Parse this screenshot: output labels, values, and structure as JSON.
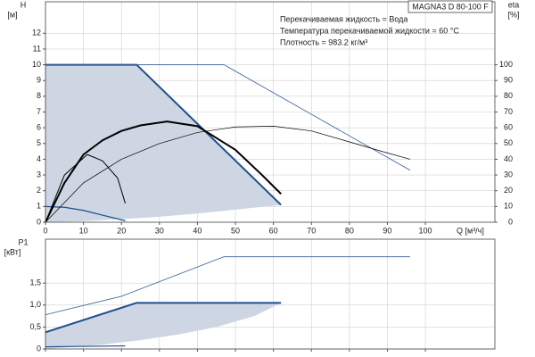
{
  "chart_data": [
    {
      "type": "line",
      "title": "MAGNA3 D 80-100 F",
      "annotations": [
        "Перекачиваемая жидкость = Вода",
        "Температура перекачиваемой жидкости = 60 °C",
        "Плотность = 983.2 кг/м³"
      ],
      "ylabel": [
        "H",
        "[м]"
      ],
      "y2label": [
        "eta",
        "[%]"
      ],
      "xlabel": "Q [м³/ч]",
      "xlim": [
        0,
        118.3
      ],
      "xticks": [
        0,
        10,
        20,
        30,
        40,
        50,
        60,
        70,
        80,
        90,
        100
      ],
      "ylim": [
        0,
        14
      ],
      "yticks": [
        0,
        1,
        2,
        3,
        4,
        5,
        6,
        7,
        8,
        9,
        10,
        11,
        12
      ],
      "y2lim": [
        0,
        140
      ],
      "y2ticks": [
        0,
        10,
        20,
        30,
        40,
        50,
        60,
        70,
        80,
        90,
        100
      ],
      "grid": true,
      "series": [
        {
          "fill": "#cdd6e2",
          "x": [
            0,
            24,
            62,
            50,
            40,
            30,
            20,
            10,
            0
          ],
          "values": [
            10,
            10,
            1.1,
            0.8,
            0.55,
            0.35,
            0.2,
            0.07,
            0
          ]
        },
        {
          "color": "#1f4e8c",
          "width": 2,
          "x": [
            0,
            24,
            62
          ],
          "values": [
            10,
            10,
            1.1
          ]
        },
        {
          "color": "#1f4e8c",
          "width": 1.2,
          "x": [
            0,
            5,
            10,
            15,
            21
          ],
          "values": [
            1,
            0.95,
            0.75,
            0.45,
            0.1
          ]
        },
        {
          "color": "#3a5f9a",
          "width": 0.8,
          "x": [
            0,
            47,
            96
          ],
          "values": [
            10,
            10,
            3.3
          ]
        },
        {
          "color": "#000000",
          "width": 2,
          "x": [
            0,
            5,
            10,
            15,
            20,
            25,
            32,
            40,
            50,
            57,
            62
          ],
          "values": [
            0,
            2.5,
            4.3,
            5.2,
            5.8,
            6.15,
            6.4,
            6.1,
            4.6,
            3,
            1.8
          ]
        },
        {
          "color": "#000000",
          "width": 1,
          "x": [
            0,
            5,
            11,
            15,
            19,
            21
          ],
          "values": [
            0,
            3,
            4.3,
            3.9,
            2.8,
            1.2
          ]
        },
        {
          "color": "#000000",
          "width": 0.7,
          "x": [
            0,
            10,
            20,
            30,
            40,
            50,
            60,
            70,
            80,
            90,
            96
          ],
          "values": [
            0,
            2.5,
            4,
            5,
            5.7,
            6.05,
            6.1,
            5.8,
            5.1,
            4.4,
            4
          ]
        }
      ]
    },
    {
      "type": "line",
      "ylabel": [
        "P1",
        "[кВт]"
      ],
      "xlim": [
        0,
        118.3
      ],
      "ylim": [
        0,
        2.5
      ],
      "yticks": [
        0,
        {
          "value": 0.5,
          "label": "0,5"
        },
        {
          "value": 1,
          "label": "1,0"
        },
        {
          "value": 1.5,
          "label": "1,5"
        }
      ],
      "grid": true,
      "series": [
        {
          "fill": "#cdd6e2",
          "x": [
            0,
            24,
            62,
            55,
            45,
            35,
            25,
            15,
            5,
            0
          ],
          "values": [
            0.38,
            1.05,
            1.05,
            0.75,
            0.5,
            0.33,
            0.2,
            0.1,
            0.03,
            0
          ]
        },
        {
          "color": "#1f4e8c",
          "width": 2,
          "x": [
            0,
            24,
            62
          ],
          "values": [
            0.38,
            1.05,
            1.05
          ]
        },
        {
          "color": "#1f4e8c",
          "width": 1.2,
          "x": [
            0,
            21
          ],
          "values": [
            0.05,
            0.07
          ]
        },
        {
          "color": "#3a5f9a",
          "width": 0.8,
          "x": [
            0,
            20,
            47,
            96
          ],
          "values": [
            0.78,
            1.2,
            2.1,
            2.1
          ]
        }
      ]
    }
  ]
}
